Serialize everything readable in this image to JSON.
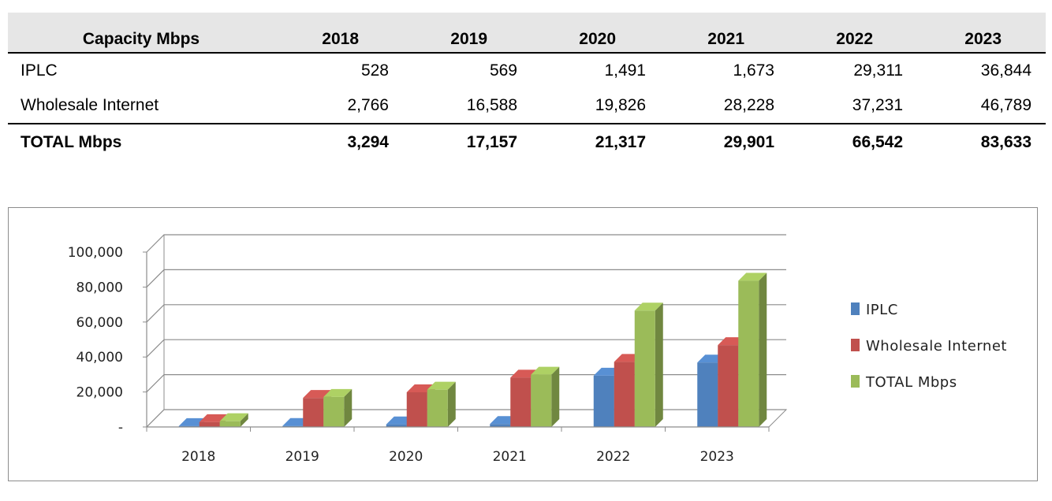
{
  "table": {
    "header": [
      "Capacity Mbps",
      "2018",
      "2019",
      "2020",
      "2021",
      "2022",
      "2023"
    ],
    "rows": [
      {
        "name": "IPLC",
        "values": [
          "528",
          "569",
          "1,491",
          "1,673",
          "29,311",
          "36,844"
        ]
      },
      {
        "name": "Wholesale Internet",
        "values": [
          "2,766",
          "16,588",
          "19,826",
          "28,228",
          "37,231",
          "46,789"
        ]
      }
    ],
    "total": {
      "name": "TOTAL Mbps",
      "values": [
        "3,294",
        "17,157",
        "21,317",
        "29,901",
        "66,542",
        "83,633"
      ]
    }
  },
  "chart_data": {
    "type": "bar",
    "style": "3d-clustered-column",
    "categories": [
      "2018",
      "2019",
      "2020",
      "2021",
      "2022",
      "2023"
    ],
    "series": [
      {
        "name": "IPLC",
        "values": [
          528,
          569,
          1491,
          1673,
          29311,
          36844
        ],
        "color": "#4f81bd"
      },
      {
        "name": "Wholesale Internet",
        "values": [
          2766,
          16588,
          19826,
          28228,
          37231,
          46789
        ],
        "color": "#c0504d"
      },
      {
        "name": "TOTAL Mbps",
        "values": [
          3294,
          17157,
          21317,
          29901,
          66542,
          83633
        ],
        "color": "#9bbb59"
      }
    ],
    "yticks": [
      "-",
      "20,000",
      "40,000",
      "60,000",
      "80,000",
      "100,000"
    ],
    "ylim": [
      0,
      100000
    ],
    "grid": true,
    "legend": "right"
  }
}
